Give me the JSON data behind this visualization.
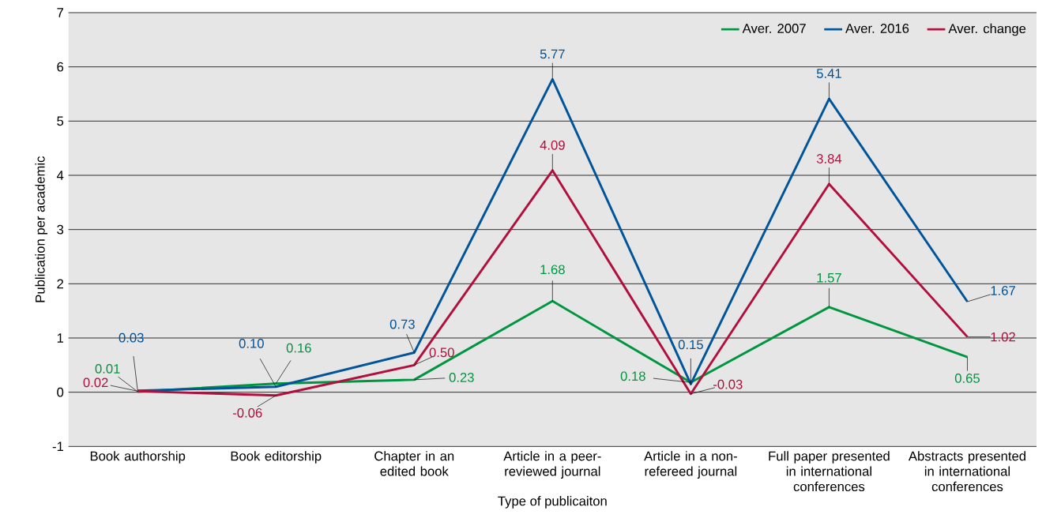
{
  "chart_data": {
    "type": "line",
    "xlabel": "Type of publicaiton",
    "ylabel": "Publication per academic",
    "categories": [
      "Book authorship",
      "Book editorship",
      "Chapter in an edited book",
      "Article in a peer-reviewed journal",
      "Article in a non-refereed journal",
      "Full paper presented in international conferences",
      "Abstracts presented in international conferences"
    ],
    "series": [
      {
        "name": "Aver. 2007",
        "color": "#00963f",
        "values": [
          0.01,
          0.16,
          0.23,
          1.68,
          0.18,
          1.57,
          0.65
        ],
        "value_labels": [
          "0.01",
          "0.16",
          "0.23",
          "1.68",
          "0.18",
          "1.57",
          "0.65"
        ]
      },
      {
        "name": "Aver. 2016",
        "color": "#005499",
        "values": [
          0.03,
          0.1,
          0.73,
          5.77,
          0.15,
          5.41,
          1.67
        ],
        "value_labels": [
          "0.03",
          "0.10",
          "0.73",
          "5.77",
          "0.15",
          "5.41",
          "1.67"
        ]
      },
      {
        "name": "Aver. change",
        "color": "#b1103f",
        "values": [
          0.02,
          -0.06,
          0.5,
          4.09,
          -0.03,
          3.84,
          1.02
        ],
        "value_labels": [
          "0.02",
          "-0.06",
          "0.50",
          "4.09",
          "-0.03",
          "3.84",
          "1.02"
        ]
      }
    ],
    "ylim": [
      -1,
      7
    ],
    "yticks": [
      -1,
      0,
      1,
      2,
      3,
      4,
      5,
      6,
      7
    ],
    "grid": "y",
    "legend": "top right",
    "marker": "none",
    "line_style": "solid"
  }
}
